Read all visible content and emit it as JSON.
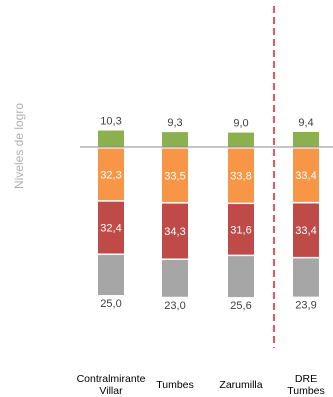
{
  "chart_data": {
    "type": "stacked-bar-diverging",
    "ylabel": "Niveles de logro",
    "categories": [
      "Contralmirante\nVillar",
      "Tumbes",
      "Zarumilla",
      "DRE\nTumbes"
    ],
    "category_labels": [
      [
        "Contralmirante",
        "Villar"
      ],
      [
        "Tumbes"
      ],
      [
        "Zarumilla"
      ],
      [
        "DRE",
        "Tumbes"
      ]
    ],
    "series": [
      {
        "level": 4,
        "color": "#8db04e",
        "values": [
          10.3,
          9.3,
          9.0,
          9.4
        ],
        "labels": [
          "10,3",
          "9,3",
          "9,0",
          "9,4"
        ]
      },
      {
        "level": 3,
        "color": "#f79646",
        "values": [
          32.3,
          33.5,
          33.8,
          33.4
        ],
        "labels": [
          "32,3",
          "33,5",
          "33,8",
          "33,4"
        ]
      },
      {
        "level": 2,
        "color": "#be4b48",
        "values": [
          32.4,
          34.3,
          31.6,
          33.4
        ],
        "labels": [
          "32,4",
          "34,3",
          "31,6",
          "33,4"
        ]
      },
      {
        "level": 1,
        "color": "#a6a6a6",
        "values": [
          25.0,
          23.0,
          25.6,
          23.9
        ],
        "labels": [
          "25,0",
          "23,0",
          "25,6",
          "23,9"
        ]
      }
    ],
    "separator_color": "#e31e24",
    "baseline_color": "#8c8c8c"
  }
}
